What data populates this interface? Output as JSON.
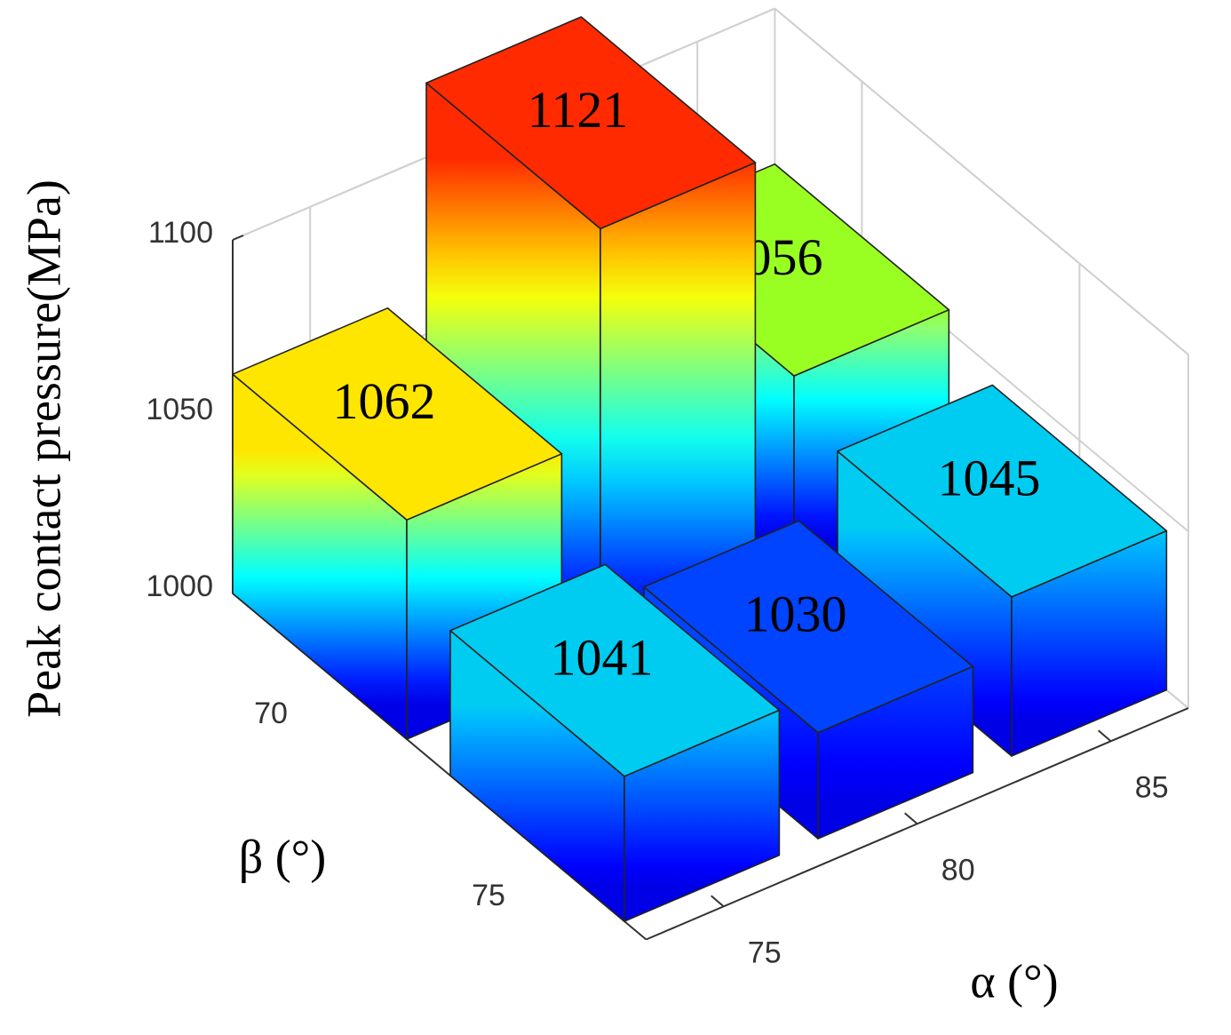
{
  "chart_data": {
    "type": "bar3d",
    "zlabel": "Peak contact pressure(MPa)",
    "xlabel": "α (°)",
    "ylabel": "β (°)",
    "x": [
      75,
      80,
      85
    ],
    "y": [
      70,
      75
    ],
    "values": [
      [
        1062,
        1121,
        1056
      ],
      [
        1041,
        1030,
        1045
      ]
    ],
    "colors": [
      [
        "#ffe600",
        "#ff2a00",
        "#99ff22"
      ],
      [
        "#00ccf2",
        "#0044ff",
        "#00ccf2"
      ]
    ],
    "xlim": [
      73,
      87
    ],
    "ylim": [
      68,
      77.5
    ],
    "zlim": [
      1000,
      1100
    ],
    "xticks": [
      75,
      80,
      85
    ],
    "yticks": [
      70,
      75
    ],
    "zticks": [
      1000,
      1050,
      1100
    ],
    "grid": true
  }
}
